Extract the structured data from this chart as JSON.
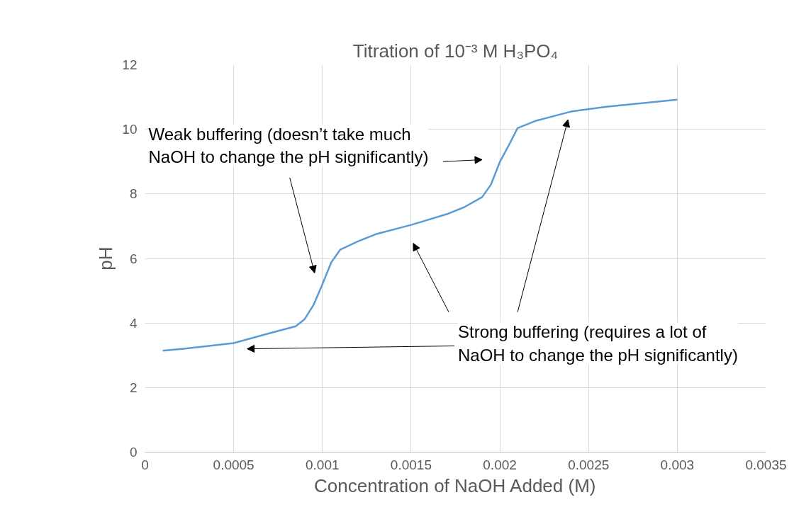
{
  "chart_data": {
    "type": "line",
    "title": "Titration of 10⁻³ M H₃PO₄",
    "xlabel": "Concentration of NaOH Added (M)",
    "ylabel": "pH",
    "x": [
      0.0001,
      0.0003,
      0.0005,
      0.0007,
      0.00085,
      0.0009,
      0.00095,
      0.001,
      0.00105,
      0.0011,
      0.0012,
      0.0013,
      0.0015,
      0.0017,
      0.0018,
      0.0019,
      0.00195,
      0.002,
      0.00205,
      0.0021,
      0.0022,
      0.0024,
      0.0026,
      0.0028,
      0.003
    ],
    "series": [
      {
        "color": "#5b9bd5",
        "values": [
          3.14,
          3.25,
          3.38,
          3.68,
          3.9,
          4.12,
          4.56,
          5.2,
          5.88,
          6.27,
          6.53,
          6.75,
          7.04,
          7.37,
          7.59,
          7.9,
          8.29,
          8.99,
          9.5,
          10.04,
          10.26,
          10.55,
          10.7,
          10.81,
          10.92
        ]
      }
    ],
    "xlim": [
      0,
      0.0035
    ],
    "xticks": [
      0,
      0.0005,
      0.001,
      0.0015,
      0.002,
      0.0025,
      0.003,
      0.0035
    ],
    "ylim": [
      0,
      12
    ],
    "yticks": [
      0,
      2,
      4,
      6,
      8,
      10,
      12
    ],
    "grid": true,
    "marker": "none",
    "line_style": "solid",
    "annotations": [
      "Weak buffering (doesn’t take much\nNaOH to change the pH significantly)",
      "Strong buffering (requires a lot of\nNaOH to change the pH significantly)"
    ]
  }
}
